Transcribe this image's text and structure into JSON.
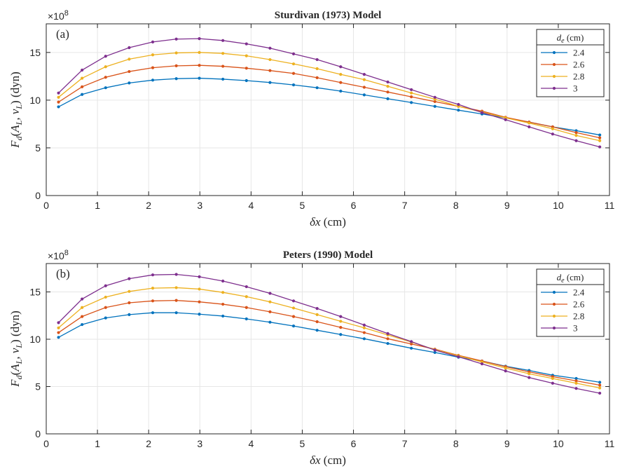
{
  "chart_data": [
    {
      "type": "line",
      "panel_label": "(a)",
      "title": "Sturdivan (1973) Model",
      "xlabel": "δx (cm)",
      "ylabel": "F_d(A_L, v_L) (dyn)",
      "multiplier": "×10",
      "multiplier_exp": "8",
      "xlim": [
        0,
        11
      ],
      "ylim": [
        0,
        18
      ],
      "xticks": [
        0,
        1,
        2,
        3,
        4,
        5,
        6,
        7,
        8,
        9,
        10,
        11
      ],
      "yticks": [
        0,
        5,
        10,
        15
      ],
      "grid": true,
      "legend_title": "d_e (cm)",
      "legend_position": "top-right",
      "x": [
        0.24,
        0.7,
        1.16,
        1.62,
        2.08,
        2.54,
        2.99,
        3.45,
        3.91,
        4.37,
        4.83,
        5.29,
        5.75,
        6.21,
        6.67,
        7.13,
        7.59,
        8.05,
        8.51,
        8.97,
        9.43,
        9.89,
        10.35,
        10.81
      ],
      "series": [
        {
          "name": "2.4",
          "color": "#0072BD",
          "values": [
            9.3,
            10.6,
            11.3,
            11.8,
            12.1,
            12.25,
            12.3,
            12.2,
            12.05,
            11.85,
            11.6,
            11.3,
            10.95,
            10.55,
            10.15,
            9.75,
            9.35,
            8.95,
            8.55,
            8.15,
            7.7,
            7.2,
            6.8,
            6.35
          ]
        },
        {
          "name": "2.6",
          "color": "#D95319",
          "values": [
            9.8,
            11.4,
            12.4,
            13.0,
            13.4,
            13.6,
            13.65,
            13.55,
            13.35,
            13.1,
            12.8,
            12.35,
            11.85,
            11.35,
            10.85,
            10.35,
            9.85,
            9.35,
            8.85,
            8.2,
            7.7,
            7.2,
            6.6,
            6.05
          ]
        },
        {
          "name": "2.8",
          "color": "#EDB120",
          "values": [
            10.3,
            12.3,
            13.5,
            14.3,
            14.75,
            14.95,
            15.0,
            14.9,
            14.65,
            14.25,
            13.8,
            13.3,
            12.7,
            12.15,
            11.45,
            10.75,
            10.1,
            9.35,
            8.75,
            8.15,
            7.6,
            7.0,
            6.3,
            5.75
          ]
        },
        {
          "name": "3",
          "color": "#7E2F8E",
          "values": [
            10.75,
            13.15,
            14.6,
            15.5,
            16.1,
            16.4,
            16.45,
            16.25,
            15.9,
            15.45,
            14.85,
            14.25,
            13.5,
            12.7,
            11.9,
            11.1,
            10.3,
            9.55,
            8.7,
            7.95,
            7.2,
            6.45,
            5.75,
            5.1
          ]
        }
      ]
    },
    {
      "type": "line",
      "panel_label": "(b)",
      "title": "Peters (1990) Model",
      "xlabel": "δx (cm)",
      "ylabel": "F_d(A_L, v_L) (dyn)",
      "multiplier": "×10",
      "multiplier_exp": "8",
      "xlim": [
        0,
        11
      ],
      "ylim": [
        0,
        18
      ],
      "xticks": [
        0,
        1,
        2,
        3,
        4,
        5,
        6,
        7,
        8,
        9,
        10,
        11
      ],
      "yticks": [
        0,
        5,
        10,
        15
      ],
      "grid": true,
      "legend_title": "d_e (cm)",
      "legend_position": "top-right",
      "x": [
        0.24,
        0.7,
        1.16,
        1.62,
        2.08,
        2.54,
        2.99,
        3.45,
        3.91,
        4.37,
        4.83,
        5.29,
        5.75,
        6.21,
        6.67,
        7.13,
        7.59,
        8.05,
        8.51,
        8.97,
        9.43,
        9.89,
        10.35,
        10.81
      ],
      "series": [
        {
          "name": "2.4",
          "color": "#0072BD",
          "values": [
            10.2,
            11.55,
            12.25,
            12.6,
            12.8,
            12.8,
            12.65,
            12.45,
            12.15,
            11.8,
            11.4,
            10.95,
            10.5,
            10.05,
            9.55,
            9.05,
            8.6,
            8.1,
            7.7,
            7.15,
            6.7,
            6.2,
            5.85,
            5.45
          ]
        },
        {
          "name": "2.6",
          "color": "#D95319",
          "values": [
            10.7,
            12.4,
            13.35,
            13.85,
            14.05,
            14.1,
            13.95,
            13.7,
            13.35,
            12.9,
            12.4,
            11.85,
            11.25,
            10.7,
            10.05,
            9.5,
            8.95,
            8.3,
            7.7,
            7.1,
            6.55,
            6.05,
            5.6,
            5.15
          ]
        },
        {
          "name": "2.8",
          "color": "#EDB120",
          "values": [
            11.2,
            13.35,
            14.45,
            15.05,
            15.4,
            15.45,
            15.3,
            14.95,
            14.5,
            13.95,
            13.3,
            12.6,
            11.9,
            11.2,
            10.45,
            9.7,
            8.9,
            8.25,
            7.6,
            6.95,
            6.35,
            5.85,
            5.35,
            4.85
          ]
        },
        {
          "name": "3",
          "color": "#7E2F8E",
          "values": [
            11.75,
            14.25,
            15.65,
            16.4,
            16.8,
            16.85,
            16.6,
            16.15,
            15.55,
            14.85,
            14.05,
            13.25,
            12.4,
            11.5,
            10.6,
            9.75,
            8.85,
            8.15,
            7.4,
            6.65,
            5.95,
            5.35,
            4.8,
            4.3
          ]
        }
      ]
    }
  ]
}
